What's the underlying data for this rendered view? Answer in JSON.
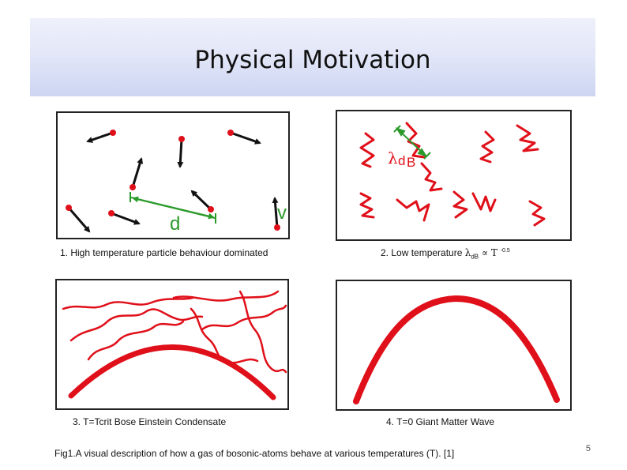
{
  "slide": {
    "title": "Physical Motivation",
    "page_number": "5"
  },
  "panels": [
    {
      "caption": "1. High temperature particle behaviour dominated",
      "labels": {
        "distance": "d",
        "velocity": "v"
      }
    },
    {
      "caption_prefix": "2. Low temperature ",
      "caption_lambda": "λ",
      "caption_sub": "dB",
      "caption_mid": " ∝ T ",
      "caption_sup": "-0.5",
      "labels": {
        "lambda_sym": "λ",
        "lambda_sub": "d",
        "lambda_rest": "B"
      }
    },
    {
      "caption": "3. T=Tcrit Bose Einstein Condensate"
    },
    {
      "caption": "4. T=0 Giant Matter Wave"
    }
  ],
  "figure_caption": "Fig1.A visual description of how a gas of bosonic-atoms behave at various temperatures (T). [1]",
  "colors": {
    "particle": "#e0101a",
    "arrow": "#111111",
    "measure": "#2a9a2a",
    "wave": "#e0101a"
  }
}
